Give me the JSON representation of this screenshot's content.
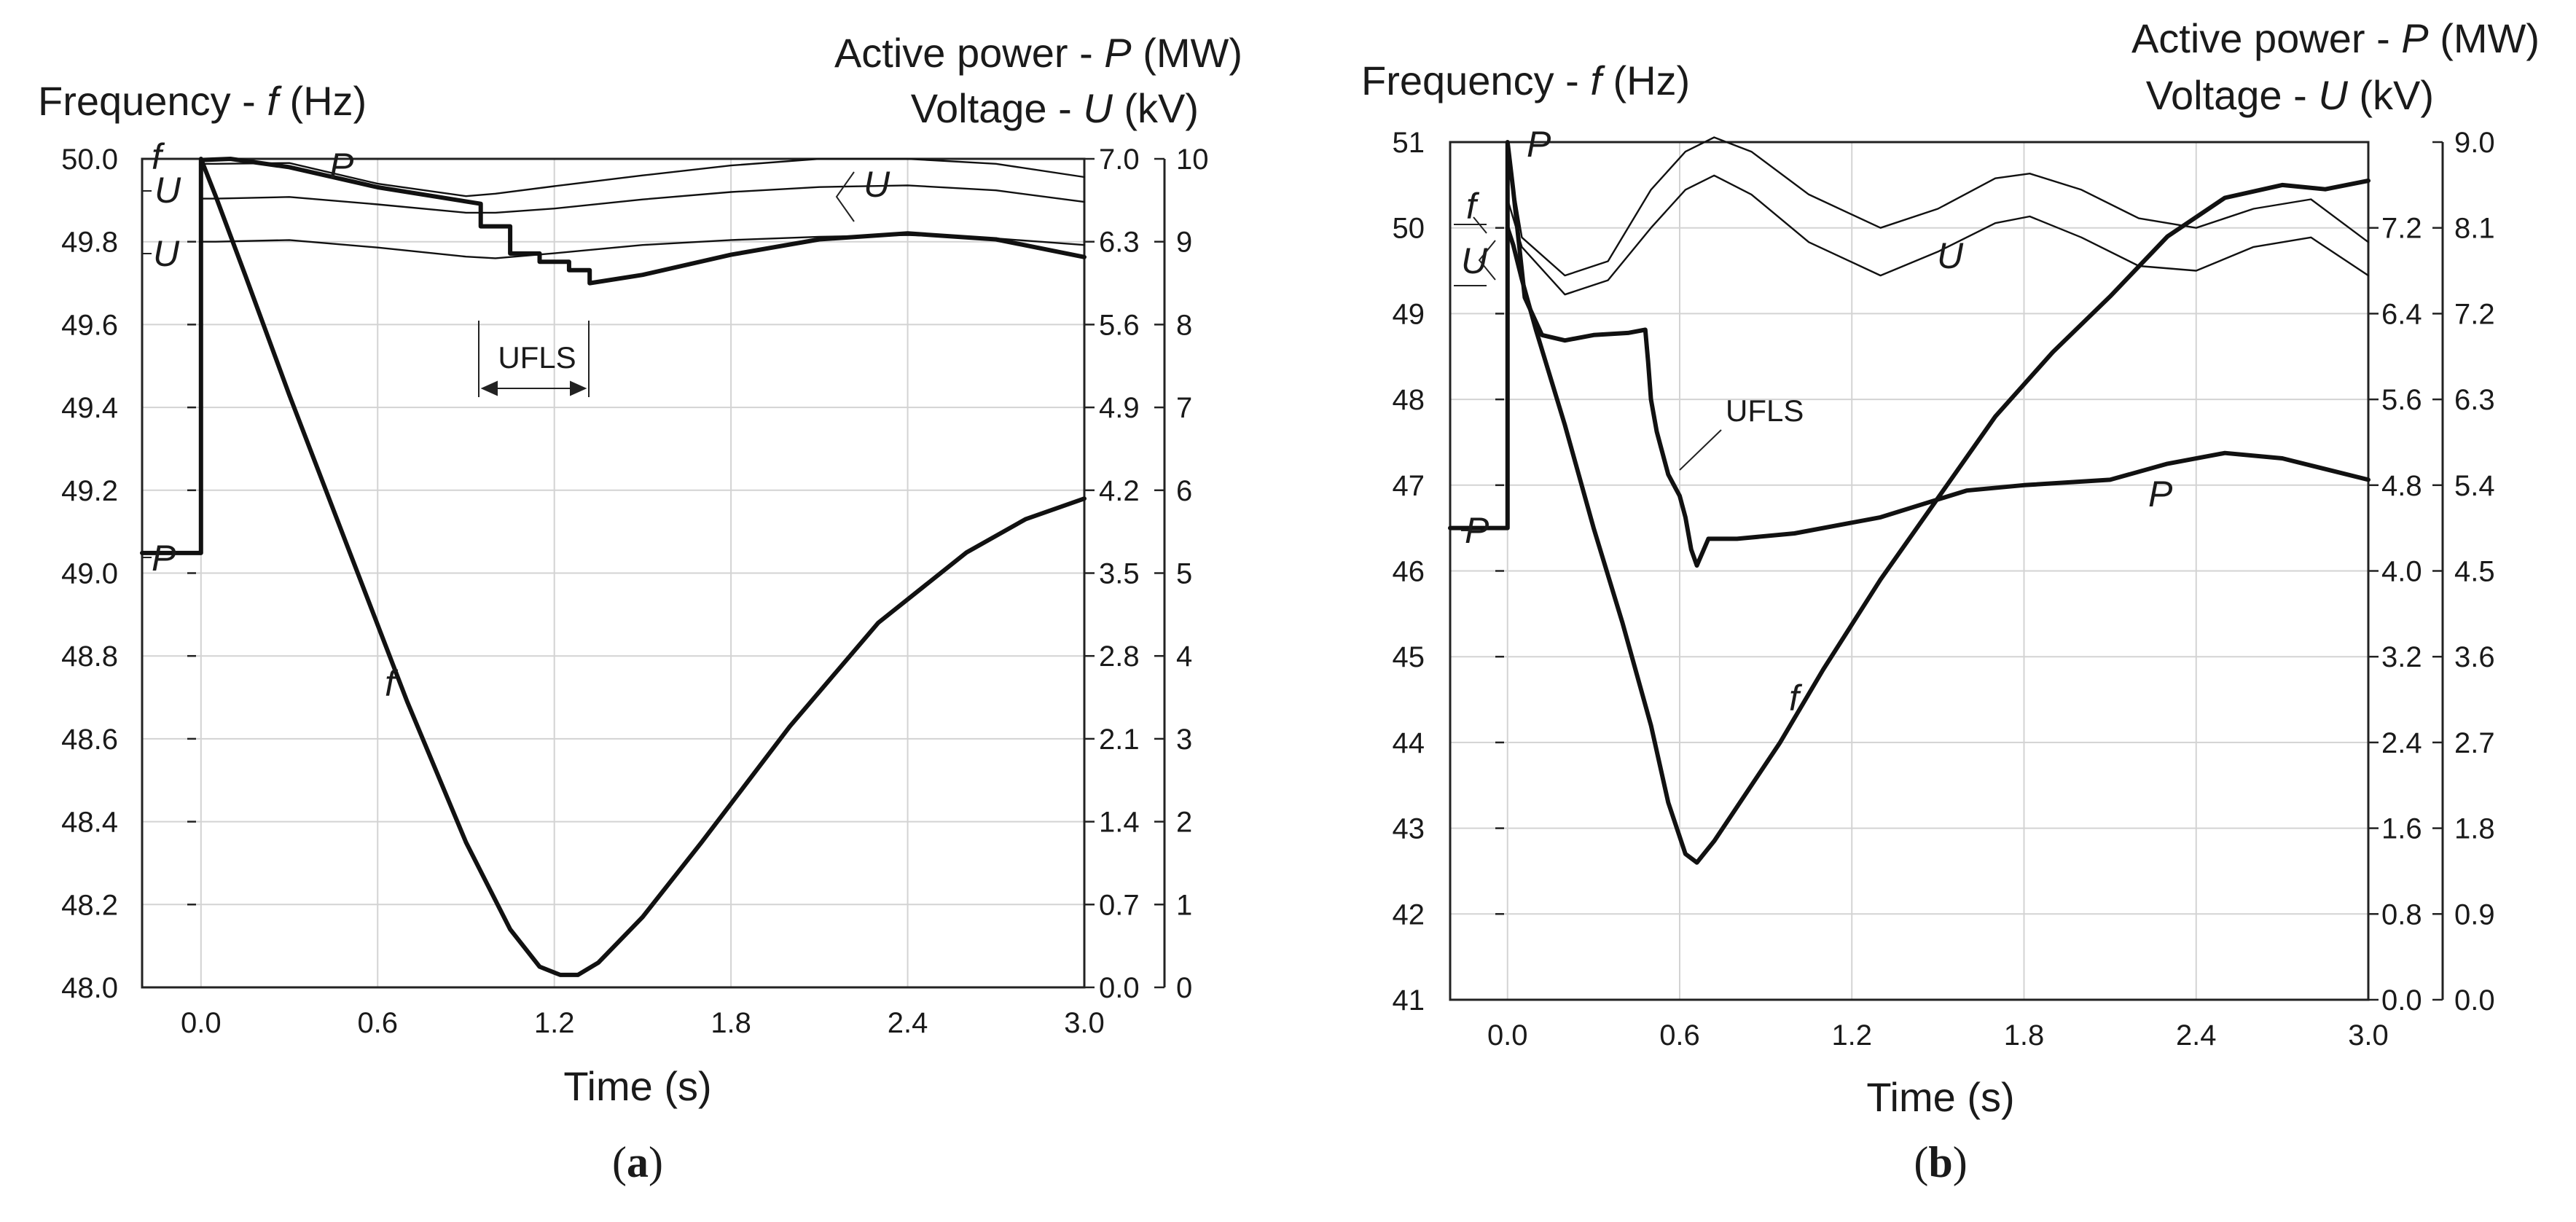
{
  "chart_data": [
    {
      "panel": "a",
      "caption": "(a)",
      "type": "line",
      "xlabel": "Time (s)",
      "ylabel_left": "Frequency - f (Hz)",
      "ylabel_right_1": "Active power - P (MW)",
      "ylabel_right_2": "Voltage - U (kV)",
      "xlim": [
        -0.2,
        3.0
      ],
      "xticks": [
        "0.0",
        "0.6",
        "1.2",
        "1.8",
        "2.4",
        "3.0"
      ],
      "xtick_values": [
        0.0,
        0.6,
        1.2,
        1.8,
        2.4,
        3.0
      ],
      "ylim": [
        48.0,
        50.0
      ],
      "yticks": [
        "50.0",
        "49.8",
        "49.6",
        "49.4",
        "49.2",
        "49.0",
        "48.8",
        "48.6",
        "48.4",
        "48.2",
        "48.0"
      ],
      "ytick_values": [
        50.0,
        49.8,
        49.6,
        49.4,
        49.2,
        49.0,
        48.8,
        48.6,
        48.4,
        48.2,
        48.0
      ],
      "p_axis": {
        "range": [
          0.0,
          7.0
        ],
        "ticks": [
          "7.0",
          "6.3",
          "5.6",
          "4.9",
          "4.2",
          "3.5",
          "2.8",
          "2.1",
          "1.4",
          "0.7",
          "0.0"
        ],
        "values": [
          7.0,
          6.3,
          5.6,
          4.9,
          4.2,
          3.5,
          2.8,
          2.1,
          1.4,
          0.7,
          0.0
        ]
      },
      "u_axis": {
        "range": [
          0,
          10
        ],
        "ticks": [
          "10",
          "9",
          "8",
          "7",
          "6",
          "5",
          "4",
          "3",
          "2",
          "1",
          "0"
        ],
        "values": [
          10,
          9,
          8,
          7,
          6,
          5,
          4,
          3,
          2,
          1,
          0
        ]
      },
      "series": [
        {
          "name": "f",
          "axis": "f",
          "weight": "bold",
          "x": [
            0,
            0.05,
            0.15,
            0.3,
            0.5,
            0.7,
            0.9,
            1.05,
            1.15,
            1.22,
            1.28,
            1.35,
            1.5,
            1.7,
            2.0,
            2.3,
            2.6,
            2.8,
            3.0
          ],
          "y": [
            50.0,
            49.91,
            49.72,
            49.43,
            49.06,
            48.69,
            48.35,
            48.14,
            48.05,
            48.03,
            48.03,
            48.06,
            48.17,
            48.35,
            48.63,
            48.88,
            49.05,
            49.13,
            49.18
          ]
        },
        {
          "name": "P",
          "axis": "P",
          "weight": "bold",
          "x": [
            -0.2,
            0.0,
            0.0,
            0.1,
            0.3,
            0.6,
            0.95,
            0.95,
            1.05,
            1.05,
            1.15,
            1.15,
            1.25,
            1.25,
            1.32,
            1.32,
            1.5,
            1.8,
            2.1,
            2.4,
            2.7,
            3.0
          ],
          "y": [
            3.67,
            3.67,
            6.99,
            7.0,
            6.93,
            6.76,
            6.62,
            6.43,
            6.43,
            6.2,
            6.2,
            6.13,
            6.13,
            6.06,
            6.06,
            5.95,
            6.02,
            6.19,
            6.32,
            6.37,
            6.32,
            6.17
          ]
        },
        {
          "name": "U1",
          "axis": "U",
          "weight": "thin",
          "x": [
            0.0,
            0.05,
            0.3,
            0.6,
            0.9,
            1.0,
            1.2,
            1.5,
            1.8,
            2.1,
            2.4,
            2.7,
            3.0
          ],
          "y": [
            9.94,
            9.94,
            9.95,
            9.7,
            9.55,
            9.58,
            9.67,
            9.8,
            9.92,
            10.0,
            10.0,
            9.94,
            9.78
          ]
        },
        {
          "name": "U2",
          "axis": "U",
          "weight": "thin",
          "x": [
            0.0,
            0.05,
            0.3,
            0.6,
            0.9,
            1.0,
            1.2,
            1.5,
            1.8,
            2.1,
            2.4,
            2.7,
            3.0
          ],
          "y": [
            9.52,
            9.52,
            9.54,
            9.45,
            9.35,
            9.35,
            9.4,
            9.51,
            9.6,
            9.66,
            9.68,
            9.62,
            9.48
          ]
        },
        {
          "name": "U3",
          "axis": "U",
          "weight": "thin",
          "x": [
            0.0,
            0.05,
            0.3,
            0.6,
            0.9,
            1.0,
            1.2,
            1.5,
            1.8,
            2.1,
            2.4,
            2.7,
            3.0
          ],
          "y": [
            9.0,
            9.0,
            9.02,
            8.93,
            8.82,
            8.8,
            8.86,
            8.96,
            9.02,
            9.06,
            9.08,
            9.04,
            8.96
          ]
        }
      ],
      "labels": {
        "f_left": "f",
        "u_left_1": "U",
        "u_left_2": "U",
        "p_top": "P",
        "p_left": "P",
        "f_curve": "f",
        "u_curve": "U",
        "ufls": "UFLS"
      }
    },
    {
      "panel": "b",
      "caption": "(b)",
      "type": "line",
      "xlabel": "Time (s)",
      "ylabel_left": "Frequency - f (Hz)",
      "ylabel_right_1": "Active power - P (MW)",
      "ylabel_right_2": "Voltage - U (kV)",
      "xlim": [
        -0.2,
        3.0
      ],
      "xticks": [
        "0.0",
        "0.6",
        "1.2",
        "1.8",
        "2.4",
        "3.0"
      ],
      "xtick_values": [
        0.0,
        0.6,
        1.2,
        1.8,
        2.4,
        3.0
      ],
      "ylim": [
        41,
        51
      ],
      "yticks": [
        "51",
        "50",
        "49",
        "48",
        "47",
        "46",
        "45",
        "44",
        "43",
        "42",
        "41"
      ],
      "ytick_values": [
        51,
        50,
        49,
        48,
        47,
        46,
        45,
        44,
        43,
        42,
        41
      ],
      "p_axis": {
        "range": [
          0.0,
          8.0
        ],
        "ticks": [
          "7.2",
          "6.4",
          "5.6",
          "4.8",
          "4.0",
          "3.2",
          "2.4",
          "1.6",
          "0.8",
          "0.0"
        ],
        "values": [
          7.2,
          6.4,
          5.6,
          4.8,
          4.0,
          3.2,
          2.4,
          1.6,
          0.8,
          0.0
        ]
      },
      "u_axis": {
        "range": [
          0.0,
          9.0
        ],
        "ticks": [
          "9.0",
          "8.1",
          "7.2",
          "6.3",
          "5.4",
          "4.5",
          "3.6",
          "2.7",
          "1.8",
          "0.9",
          "0.0"
        ],
        "values": [
          9.0,
          8.1,
          7.2,
          6.3,
          5.4,
          4.5,
          3.6,
          2.7,
          1.8,
          0.9,
          0.0
        ]
      },
      "series": [
        {
          "name": "f",
          "axis": "f",
          "weight": "bold",
          "x": [
            0.0,
            0.02,
            0.05,
            0.1,
            0.2,
            0.3,
            0.4,
            0.5,
            0.56,
            0.62,
            0.66,
            0.72,
            0.8,
            0.95,
            1.1,
            1.3,
            1.5,
            1.7,
            1.9,
            2.1,
            2.3,
            2.5,
            2.7,
            2.85,
            3.0
          ],
          "y": [
            50.0,
            49.8,
            49.4,
            48.8,
            47.7,
            46.5,
            45.4,
            44.2,
            43.3,
            42.7,
            42.6,
            42.85,
            43.25,
            44.0,
            44.85,
            45.9,
            46.85,
            47.8,
            48.55,
            49.2,
            49.9,
            50.35,
            50.5,
            50.45,
            50.55
          ]
        },
        {
          "name": "P",
          "axis": "P",
          "weight": "bold",
          "x": [
            -0.2,
            0.0,
            0.0,
            0.02,
            0.06,
            0.12,
            0.2,
            0.3,
            0.42,
            0.48,
            0.49,
            0.5,
            0.52,
            0.54,
            0.56,
            0.58,
            0.6,
            0.62,
            0.64,
            0.66,
            0.7,
            0.8,
            1.0,
            1.3,
            1.6,
            1.8,
            2.1,
            2.3,
            2.5,
            2.7,
            2.85,
            3.0
          ],
          "y": [
            4.4,
            4.4,
            8.0,
            7.55,
            6.55,
            6.2,
            6.15,
            6.2,
            6.22,
            6.25,
            5.95,
            5.6,
            5.3,
            5.1,
            4.9,
            4.8,
            4.7,
            4.5,
            4.2,
            4.05,
            4.3,
            4.3,
            4.35,
            4.5,
            4.75,
            4.8,
            4.85,
            5.0,
            5.1,
            5.05,
            4.95,
            4.85
          ]
        },
        {
          "name": "U1",
          "axis": "U",
          "weight": "thin",
          "x": [
            0.0,
            0.05,
            0.2,
            0.35,
            0.5,
            0.62,
            0.72,
            0.85,
            1.05,
            1.3,
            1.5,
            1.7,
            1.82,
            2.0,
            2.2,
            2.4,
            2.6,
            2.8,
            3.0
          ],
          "y": [
            8.9,
            8.0,
            7.6,
            7.75,
            8.5,
            8.9,
            9.05,
            8.9,
            8.45,
            8.1,
            8.3,
            8.62,
            8.67,
            8.5,
            8.2,
            8.1,
            8.3,
            8.4,
            7.95
          ]
        },
        {
          "name": "U2",
          "axis": "U",
          "weight": "thin",
          "x": [
            0.0,
            0.05,
            0.2,
            0.35,
            0.5,
            0.62,
            0.72,
            0.85,
            1.05,
            1.3,
            1.5,
            1.7,
            1.82,
            2.0,
            2.2,
            2.4,
            2.6,
            2.8,
            3.0
          ],
          "y": [
            8.4,
            7.9,
            7.4,
            7.55,
            8.1,
            8.5,
            8.65,
            8.45,
            7.95,
            7.6,
            7.85,
            8.15,
            8.22,
            8.0,
            7.7,
            7.65,
            7.9,
            8.0,
            7.6
          ]
        }
      ],
      "labels": {
        "f_left": "f",
        "u_left": "U",
        "p_top": "P",
        "p_left": "P",
        "f_curve": "f",
        "u_curve": "U",
        "p_curve": "P",
        "ufls": "UFLS"
      }
    }
  ],
  "text": {
    "a_freq_prefix": "Frequency - ",
    "a_freq_var": "f",
    "a_freq_unit": " (Hz)",
    "a_power_prefix": "Active power - ",
    "a_power_var": "P",
    "a_power_unit": " (MW)",
    "a_volt_prefix": "Voltage - ",
    "a_volt_var": "U",
    "a_volt_unit": " (kV)",
    "b_freq_prefix": "Frequency - ",
    "b_freq_var": "f",
    "b_freq_unit": " (Hz)",
    "b_power_prefix": "Active power - ",
    "b_power_var": "P",
    "b_power_unit": " (MW)",
    "b_volt_prefix": "Voltage - ",
    "b_volt_var": "U",
    "b_volt_unit": " (kV)",
    "caption_a_letter": "a",
    "caption_b_letter": "b"
  }
}
